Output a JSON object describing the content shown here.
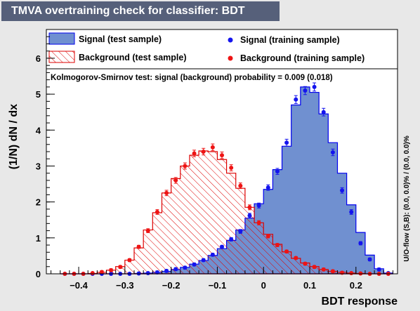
{
  "window": {
    "title": "TMVA overtraining check for classifier: BDT"
  },
  "chart_data": {
    "type": "histogram",
    "xlabel": "BDT response",
    "ylabel": "(1/N) dN / dx",
    "xlim": [
      -0.47,
      0.29
    ],
    "ylim": [
      0,
      6.8
    ],
    "xticks": [
      -0.4,
      -0.3,
      -0.2,
      -0.1,
      0,
      0.1,
      0.2
    ],
    "xtick_labels": [
      "−0.4",
      "−0.3",
      "−0.2",
      "−0.1",
      "0",
      "0.1",
      "0.2"
    ],
    "yticks": [
      0,
      1,
      2,
      3,
      4,
      5,
      6
    ],
    "bin_edges": [
      -0.44,
      -0.42,
      -0.4,
      -0.38,
      -0.36,
      -0.34,
      -0.32,
      -0.3,
      -0.28,
      -0.26,
      -0.24,
      -0.22,
      -0.2,
      -0.18,
      -0.16,
      -0.14,
      -0.12,
      -0.1,
      -0.08,
      -0.06,
      -0.04,
      -0.02,
      0.0,
      0.02,
      0.04,
      0.06,
      0.08,
      0.1,
      0.12,
      0.14,
      0.16,
      0.18,
      0.2,
      0.22,
      0.24,
      0.26,
      0.28
    ],
    "series": [
      {
        "name": "Signal (test sample)",
        "kind": "filled-hist",
        "color": "#7090d0",
        "line": "#0000ee",
        "values": [
          0,
          0,
          0,
          0,
          0,
          0,
          0,
          0,
          0.01,
          0.02,
          0.04,
          0.07,
          0.12,
          0.18,
          0.27,
          0.37,
          0.51,
          0.7,
          0.93,
          1.22,
          1.55,
          1.95,
          2.35,
          2.9,
          3.55,
          4.7,
          5.2,
          5.05,
          4.45,
          3.65,
          2.8,
          1.92,
          1.15,
          0.52,
          0.14,
          0.02
        ]
      },
      {
        "name": "Background (test sample)",
        "kind": "hatched-hist",
        "color": "#dd0000",
        "line": "#dd0000",
        "values": [
          0,
          0,
          0,
          0.01,
          0.04,
          0.1,
          0.2,
          0.38,
          0.72,
          1.22,
          1.7,
          2.25,
          2.65,
          3.0,
          3.3,
          3.42,
          3.4,
          3.18,
          2.8,
          2.38,
          1.85,
          1.42,
          1.1,
          0.82,
          0.61,
          0.43,
          0.3,
          0.2,
          0.12,
          0.07,
          0.04,
          0.02,
          0.01,
          0,
          0,
          0
        ]
      },
      {
        "name": "Signal (training sample)",
        "kind": "points",
        "color": "#1414ee",
        "values": [
          0,
          0,
          0,
          0,
          0,
          0,
          0,
          0,
          0.01,
          0.02,
          0.04,
          0.08,
          0.13,
          0.17,
          0.26,
          0.38,
          0.53,
          0.75,
          0.96,
          1.18,
          1.62,
          1.9,
          2.4,
          2.85,
          3.65,
          4.85,
          5.1,
          5.2,
          4.5,
          3.38,
          2.32,
          1.72,
          0.85,
          0.4,
          0.12,
          0.02
        ]
      },
      {
        "name": "Background (training sample)",
        "kind": "points",
        "color": "#ee1414",
        "values": [
          0,
          0,
          0,
          0.02,
          0.05,
          0.1,
          0.19,
          0.38,
          0.75,
          1.2,
          1.72,
          2.25,
          2.6,
          3.0,
          3.35,
          3.4,
          3.52,
          3.3,
          2.95,
          2.45,
          1.85,
          1.42,
          1.05,
          0.8,
          0.62,
          0.44,
          0.28,
          0.19,
          0.12,
          0.07,
          0.03,
          0.02,
          0.01,
          0,
          0,
          0
        ]
      }
    ],
    "legend_position": "top",
    "annotation": "Kolmogorov-Smirnov test: signal (background) probability = 0.009 (0.018)",
    "side_text": "U/O-flow (S,B): (0.0, 0.0)% / (0.0, 0.0)%"
  }
}
